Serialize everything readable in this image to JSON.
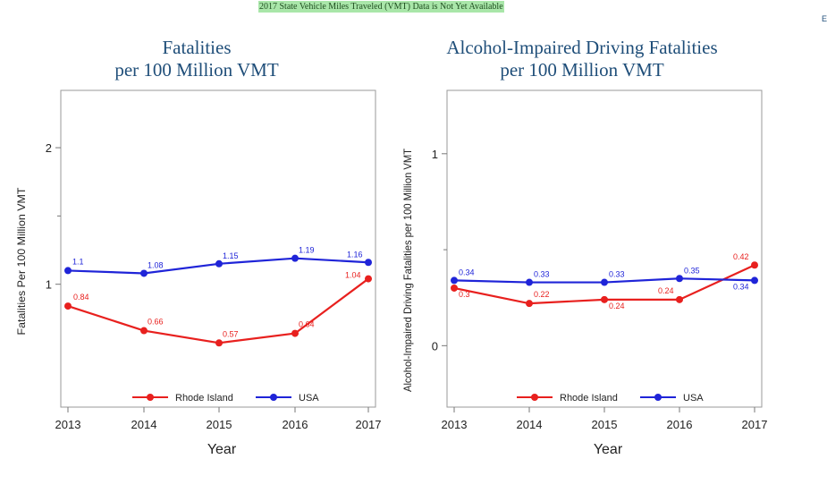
{
  "banner": "2017 State Vehicle Miles Traveled (VMT) Data is Not Yet Available",
  "edge_letter": "E",
  "colors": {
    "rhode_island": "#e8201e",
    "usa": "#1f24d8",
    "title": "#1f4e79"
  },
  "chart_data": [
    {
      "type": "line",
      "title": [
        "Fatalities",
        "per 100 Million VMT"
      ],
      "xlabel": "Year",
      "ylabel": "Fatalities Per 100 Million VMT",
      "categories": [
        "2013",
        "2014",
        "2015",
        "2016",
        "2017"
      ],
      "yticks": [
        "1",
        "2"
      ],
      "ylim": [
        0.1,
        2.42
      ],
      "grid": false,
      "legend": "bottom-center",
      "series": [
        {
          "name": "Rhode Island",
          "color": "#e8201e",
          "values": [
            0.84,
            0.66,
            0.57,
            0.64,
            1.04
          ],
          "labels": [
            "0.84",
            "0.66",
            "0.57",
            "0.64",
            "1.04"
          ]
        },
        {
          "name": "USA",
          "color": "#1f24d8",
          "values": [
            1.1,
            1.08,
            1.15,
            1.19,
            1.16
          ],
          "labels": [
            "1.1",
            "1.08",
            "1.15",
            "1.19",
            "1.16"
          ]
        }
      ]
    },
    {
      "type": "line",
      "title": [
        "Alcohol-Impaired Driving Fatalities",
        "per 100 Million VMT"
      ],
      "xlabel": "Year",
      "ylabel": "Alcohol-Impaired Driving Fatalities per 100 Million VMT",
      "categories": [
        "2013",
        "2014",
        "2015",
        "2016",
        "2017"
      ],
      "yticks": [
        "0",
        "1"
      ],
      "ylim": [
        -0.32,
        1.33
      ],
      "grid": false,
      "legend": "bottom-center",
      "series": [
        {
          "name": "Rhode Island",
          "color": "#e8201e",
          "values": [
            0.3,
            0.22,
            0.24,
            0.24,
            0.42
          ],
          "labels": [
            "0.3",
            "0.22",
            "0.24",
            "0.24",
            "0.42"
          ]
        },
        {
          "name": "USA",
          "color": "#1f24d8",
          "values": [
            0.34,
            0.33,
            0.33,
            0.35,
            0.34
          ],
          "labels": [
            "0.34",
            "0.33",
            "0.33",
            "0.35",
            "0.34"
          ]
        }
      ]
    }
  ]
}
